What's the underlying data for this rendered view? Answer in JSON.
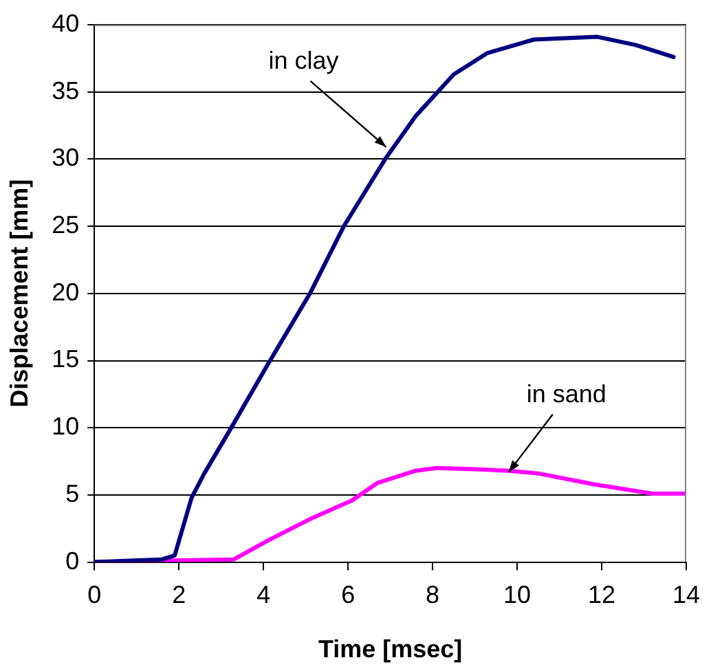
{
  "chart_data": {
    "type": "line",
    "xlabel": "Time [msec]",
    "ylabel": "Displacement [mm]",
    "xlim": [
      0,
      14
    ],
    "xticks": [
      0,
      2,
      4,
      6,
      8,
      10,
      12,
      14
    ],
    "ylim": [
      0,
      40
    ],
    "yticks": [
      0,
      5,
      10,
      15,
      20,
      25,
      30,
      35,
      40
    ],
    "grid": "y",
    "legend": false,
    "marker": "none",
    "line_style": "solid",
    "series": [
      {
        "color": "#000080",
        "x": [
          0,
          1.6,
          1.9,
          2.3,
          2.6,
          3.2,
          4.1,
          5.1,
          5.9,
          6.9,
          7.6,
          8.5,
          9.3,
          10.4,
          11.9,
          12.8,
          13.7
        ],
        "values": [
          0,
          0.2,
          0.5,
          4.8,
          6.6,
          9.8,
          14.7,
          20,
          25,
          30.1,
          33.2,
          36.3,
          37.9,
          38.9,
          39.1,
          38.5,
          37.6
        ]
      },
      {
        "color": "#ff00ff",
        "x": [
          0,
          3.3,
          4.1,
          5.1,
          6.1,
          6.7,
          7.6,
          8.1,
          9.1,
          9.8,
          10.5,
          11.8,
          13.2,
          14
        ],
        "values": [
          0,
          0.2,
          1.6,
          3.2,
          4.6,
          5.9,
          6.8,
          7,
          6.9,
          6.8,
          6.6,
          5.8,
          5.1,
          5.1
        ]
      }
    ],
    "annotations": [
      {
        "text": "in clay",
        "x": 6.9,
        "y": 30.9
      },
      {
        "text": "in sand",
        "x": 9.8,
        "y": 6.7
      }
    ]
  }
}
